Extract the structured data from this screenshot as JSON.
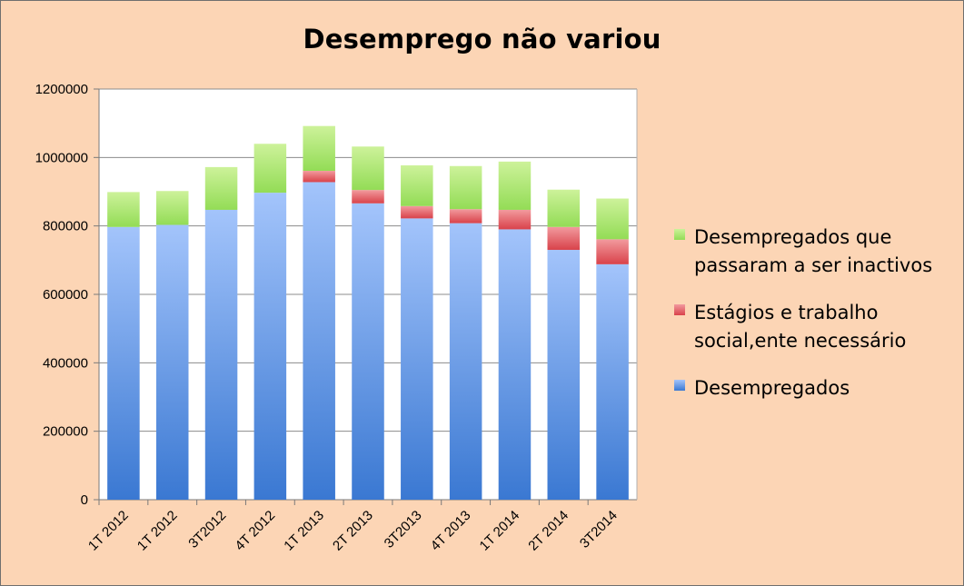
{
  "chart_data": {
    "type": "bar",
    "stacked": true,
    "title": "Desemprego não variou",
    "xlabel": "",
    "ylabel": "",
    "ylim": [
      0,
      1200000
    ],
    "yticks": [
      "0",
      "200000",
      "400000",
      "600000",
      "800000",
      "1000000",
      "1200000"
    ],
    "grid": true,
    "legend_position": "right",
    "categories": [
      "1T 2012",
      "1T 2012",
      "3T2012",
      "4T 2012",
      "1T 2013",
      "2T 2013",
      "3T2013",
      "4T 2013",
      "1T 2014",
      "2T 2014",
      "3T2014"
    ],
    "series": [
      {
        "name": "Desempregados",
        "color": "#4f81d1",
        "values": [
          797000,
          803000,
          847000,
          897000,
          928000,
          866000,
          822000,
          808000,
          790000,
          730000,
          688000
        ]
      },
      {
        "name": "Estágios e trabalho social,ente necessário",
        "color": "#e15d63",
        "values": [
          0,
          0,
          0,
          0,
          33000,
          39000,
          36000,
          41000,
          57000,
          67000,
          73000
        ]
      },
      {
        "name": "Desempregados que passaram a ser inactivos",
        "color": "#9be05a",
        "values": [
          102000,
          99000,
          125000,
          143000,
          131000,
          127000,
          119000,
          126000,
          141000,
          109000,
          119000
        ]
      }
    ]
  },
  "legend": {
    "items": [
      {
        "label": "Desempregados que passaram a ser inactivos",
        "color": "#9be05a"
      },
      {
        "label": "Estágios e trabalho social,ente necessário",
        "color": "#e15d63"
      },
      {
        "label": "Desempregados",
        "color": "#4f81d1"
      }
    ]
  }
}
